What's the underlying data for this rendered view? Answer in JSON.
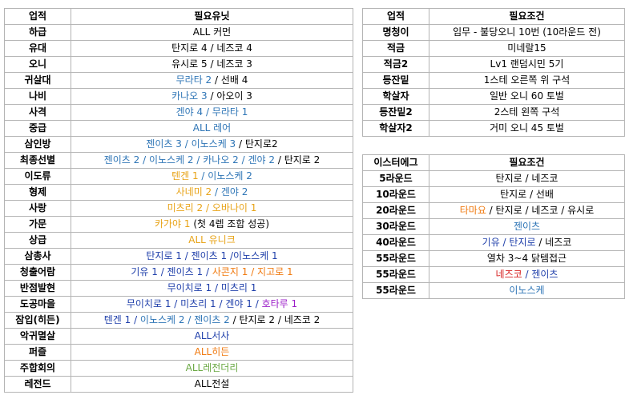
{
  "units_table": {
    "headers": [
      "업적",
      "필요유닛"
    ],
    "rows": [
      {
        "name": "하급",
        "parts": [
          {
            "t": "ALL 커먼",
            "c": "black"
          }
        ]
      },
      {
        "name": "유대",
        "parts": [
          {
            "t": "탄지로 4 / 네즈코 4",
            "c": "black"
          }
        ]
      },
      {
        "name": "오니",
        "parts": [
          {
            "t": "유시로 5 / 네즈코 3",
            "c": "black"
          }
        ]
      },
      {
        "name": "귀살대",
        "parts": [
          {
            "t": "무라타 2",
            "c": "steel"
          },
          {
            "t": " / 선배 4",
            "c": "black"
          }
        ]
      },
      {
        "name": "나비",
        "parts": [
          {
            "t": "카나오 3",
            "c": "steel"
          },
          {
            "t": " / 아오이 3",
            "c": "black"
          }
        ]
      },
      {
        "name": "사격",
        "parts": [
          {
            "t": "겐야 4 / 무라타 1",
            "c": "steel"
          }
        ]
      },
      {
        "name": "중급",
        "parts": [
          {
            "t": "ALL 레어",
            "c": "steel"
          }
        ]
      },
      {
        "name": "삼인방",
        "parts": [
          {
            "t": "젠이츠 3 / 이노스케 3",
            "c": "steel"
          },
          {
            "t": " / 탄지로2",
            "c": "black"
          }
        ]
      },
      {
        "name": "최종선별",
        "parts": [
          {
            "t": "젠이츠 2 / 이노스케 2 / 카나오 2 / 겐야 2",
            "c": "steel"
          },
          {
            "t": " / 탄지로 2",
            "c": "black"
          }
        ]
      },
      {
        "name": "이도류",
        "parts": [
          {
            "t": "텐겐 1",
            "c": "gold"
          },
          {
            "t": " / 이노스케 2",
            "c": "steel"
          }
        ]
      },
      {
        "name": "형제",
        "parts": [
          {
            "t": "사네미 2",
            "c": "gold"
          },
          {
            "t": " / 겐야 2",
            "c": "steel"
          }
        ]
      },
      {
        "name": "사랑",
        "parts": [
          {
            "t": "미츠리 2 / 오바나이 1",
            "c": "gold"
          }
        ]
      },
      {
        "name": "가문",
        "parts": [
          {
            "t": "카가야 1",
            "c": "gold"
          },
          {
            "t": " (첫 4렙 조합 성공)",
            "c": "black"
          }
        ]
      },
      {
        "name": "상급",
        "parts": [
          {
            "t": "ALL 유니크",
            "c": "gold"
          }
        ]
      },
      {
        "name": "삼총사",
        "parts": [
          {
            "t": "탄지로 1 / 젠이츠 1 /이노스케 1",
            "c": "blue"
          }
        ]
      },
      {
        "name": "청출어람",
        "parts": [
          {
            "t": "기유 1 / 젠이츠 1 / ",
            "c": "blue"
          },
          {
            "t": "사콘지 1 / 지고로 1",
            "c": "orange"
          }
        ]
      },
      {
        "name": "반점발현",
        "parts": [
          {
            "t": "무이치로 1 / 미츠리 1",
            "c": "blue"
          }
        ]
      },
      {
        "name": "도공마을",
        "parts": [
          {
            "t": "무이치로 1 / 미츠리 1 / 겐야 1 / ",
            "c": "blue"
          },
          {
            "t": "호타루 1",
            "c": "purple"
          }
        ]
      },
      {
        "name": "잠입(히든)",
        "parts": [
          {
            "t": "텐겐 1 / ",
            "c": "blue"
          },
          {
            "t": "이노스케 2 / 젠이츠 2",
            "c": "steel"
          },
          {
            "t": " / 탄지로 2 / 네즈코 2",
            "c": "black"
          }
        ]
      },
      {
        "name": "악귀멸살",
        "parts": [
          {
            "t": "ALL서사",
            "c": "blue"
          }
        ]
      },
      {
        "name": "퍼즐",
        "parts": [
          {
            "t": "ALL히든",
            "c": "orange"
          }
        ]
      },
      {
        "name": "주합회의",
        "parts": [
          {
            "t": "ALL레전더리",
            "c": "green"
          }
        ]
      },
      {
        "name": "레전드",
        "parts": [
          {
            "t": "ALL전설",
            "c": "black"
          }
        ]
      }
    ]
  },
  "conditions_table": {
    "headers": [
      "업적",
      "필요조건"
    ],
    "rows": [
      {
        "name": "명청이",
        "parts": [
          {
            "t": "임무 - 불당오니 10번 (10라운드 전)",
            "c": "black"
          }
        ]
      },
      {
        "name": "적금",
        "parts": [
          {
            "t": "미네랄15",
            "c": "black"
          }
        ]
      },
      {
        "name": "적금2",
        "parts": [
          {
            "t": "Lv1 랜덤시민 5기",
            "c": "black"
          }
        ]
      },
      {
        "name": "등잔밑",
        "parts": [
          {
            "t": "1스테 오른쪽 위 구석",
            "c": "black"
          }
        ]
      },
      {
        "name": "학살자",
        "parts": [
          {
            "t": "일반 오니 60 토벌",
            "c": "black"
          }
        ]
      },
      {
        "name": "등잔밑2",
        "parts": [
          {
            "t": "2스테 왼쪽 구석",
            "c": "black"
          }
        ]
      },
      {
        "name": "학살자2",
        "parts": [
          {
            "t": "거미 오니 45 토벌",
            "c": "black"
          }
        ]
      }
    ]
  },
  "easter_table": {
    "headers": [
      "이스터에그",
      "필요조건"
    ],
    "rows": [
      {
        "name": "5라운드",
        "parts": [
          {
            "t": "탄지로 / 네즈코",
            "c": "black"
          }
        ]
      },
      {
        "name": "10라운드",
        "parts": [
          {
            "t": "탄지로 / 선배",
            "c": "black"
          }
        ]
      },
      {
        "name": "20라운드",
        "parts": [
          {
            "t": "타마요",
            "c": "orange"
          },
          {
            "t": " / 탄지로 / 네즈코 / 유시로",
            "c": "black"
          }
        ]
      },
      {
        "name": "30라운드",
        "parts": [
          {
            "t": "젠이츠",
            "c": "steel"
          }
        ]
      },
      {
        "name": "40라운드",
        "parts": [
          {
            "t": "기유 / 탄지로",
            "c": "blue"
          },
          {
            "t": " / 네즈코",
            "c": "black"
          }
        ]
      },
      {
        "name": "55라운드",
        "parts": [
          {
            "t": "열차 3~4 닭템접근",
            "c": "black"
          }
        ]
      },
      {
        "name": "55라운드",
        "parts": [
          {
            "t": "네즈코",
            "c": "red"
          },
          {
            "t": " / 젠이츠",
            "c": "blue"
          }
        ]
      },
      {
        "name": "55라운드",
        "parts": [
          {
            "t": "이노스케",
            "c": "steel"
          }
        ]
      }
    ]
  },
  "colors": {
    "black": "#000000",
    "steel": "#2e75b6",
    "blue": "#1f3faa",
    "gold": "#e8a317",
    "orange": "#f07a10",
    "red": "#d62020",
    "purple": "#9b1cc8",
    "green": "#6aa843",
    "border": "#b4b4b4"
  }
}
